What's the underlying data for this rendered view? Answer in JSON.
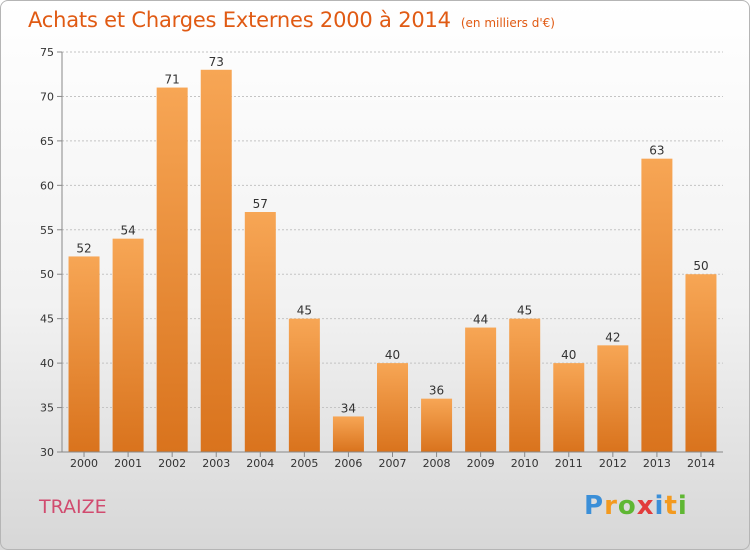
{
  "header": {
    "title": "Achats et Charges Externes 2000 à 2014",
    "subtitle": "(en milliers d'€)"
  },
  "footer": {
    "commune": "TRAIZE",
    "logo": "Proxiti"
  },
  "colors": {
    "title": "#e05a13",
    "bar_light": "#f7a655",
    "bar_dark": "#d9731d",
    "commune": "#d14b6f"
  },
  "chart_data": {
    "type": "bar",
    "categories": [
      "2000",
      "2001",
      "2002",
      "2003",
      "2004",
      "2005",
      "2006",
      "2007",
      "2008",
      "2009",
      "2010",
      "2011",
      "2012",
      "2013",
      "2014"
    ],
    "values": [
      52,
      54,
      71,
      73,
      57,
      45,
      34,
      40,
      36,
      44,
      45,
      40,
      42,
      63,
      50
    ],
    "title": "Achats et Charges Externes 2000 à 2014",
    "subtitle": "(en milliers d'€)",
    "ylim": [
      30,
      75
    ],
    "yticks": [
      30,
      35,
      40,
      45,
      50,
      55,
      60,
      65,
      70,
      75
    ],
    "grid": "horizontal dotted",
    "legend": "none"
  }
}
